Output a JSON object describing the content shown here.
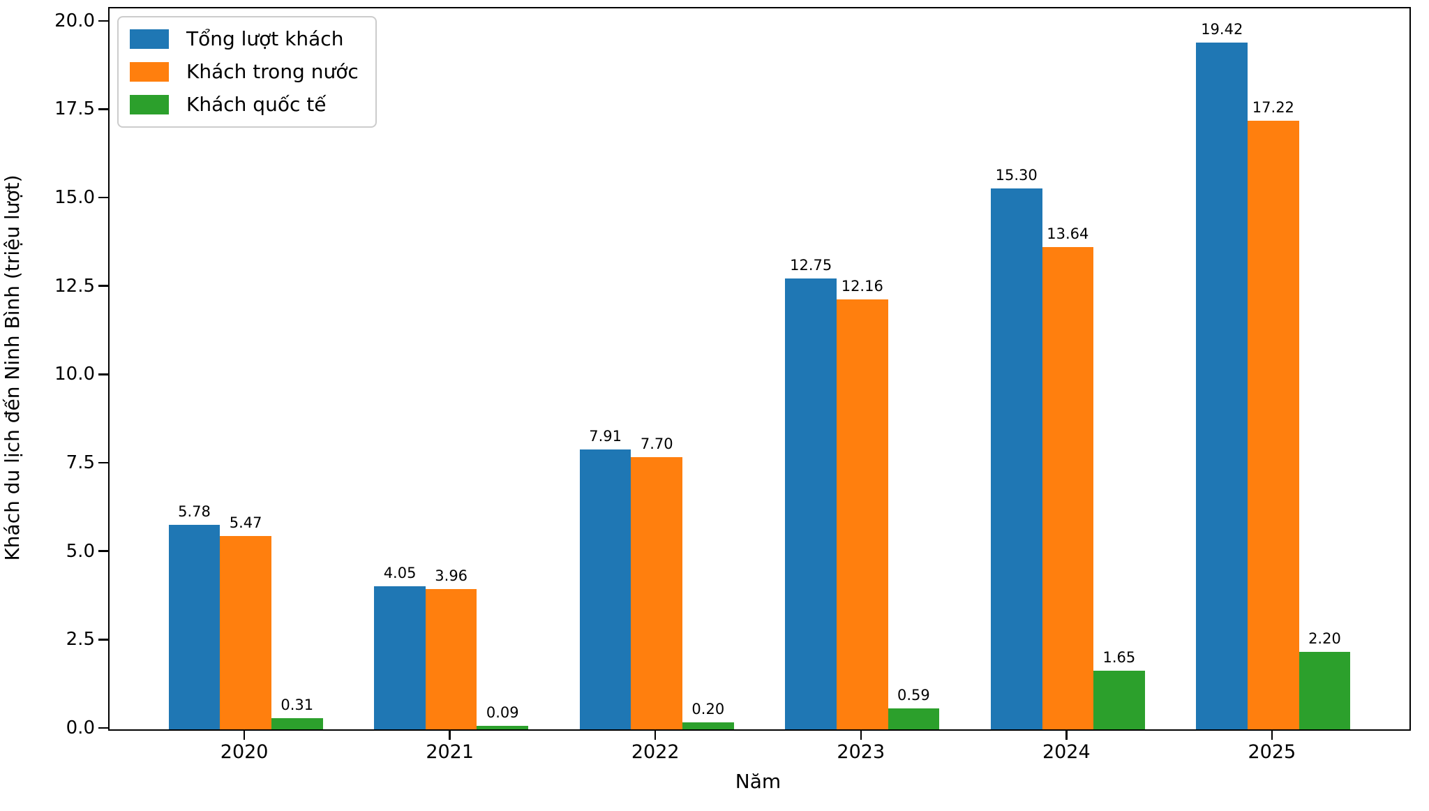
{
  "chart_data": {
    "type": "bar",
    "title": "",
    "xlabel": "Năm",
    "ylabel": "Khách du lịch đến Ninh Bình (triệu lượt)",
    "categories": [
      "2020",
      "2021",
      "2022",
      "2023",
      "2024",
      "2025"
    ],
    "series": [
      {
        "name": "Tổng lượt khách",
        "color": "#1f77b4",
        "values": [
          5.78,
          4.05,
          7.91,
          12.75,
          15.3,
          19.42
        ]
      },
      {
        "name": "Khách trong nước",
        "color": "#ff7f0e",
        "values": [
          5.47,
          3.96,
          7.7,
          12.16,
          13.64,
          17.22
        ]
      },
      {
        "name": "Khách quốc tế",
        "color": "#2ca02c",
        "values": [
          0.31,
          0.09,
          0.2,
          0.59,
          1.65,
          2.2
        ]
      }
    ],
    "yticks": [
      0.0,
      2.5,
      5.0,
      7.5,
      10.0,
      12.5,
      15.0,
      17.5,
      20.0
    ],
    "ylim": [
      0,
      20.39
    ],
    "legend_position": "upper left",
    "grid": false,
    "bar_value_labels": true,
    "value_label_decimals": 2,
    "ytick_decimals": 1
  },
  "colors": {
    "axis": "#000000",
    "legend_border": "#cccccc",
    "background": "#ffffff"
  }
}
